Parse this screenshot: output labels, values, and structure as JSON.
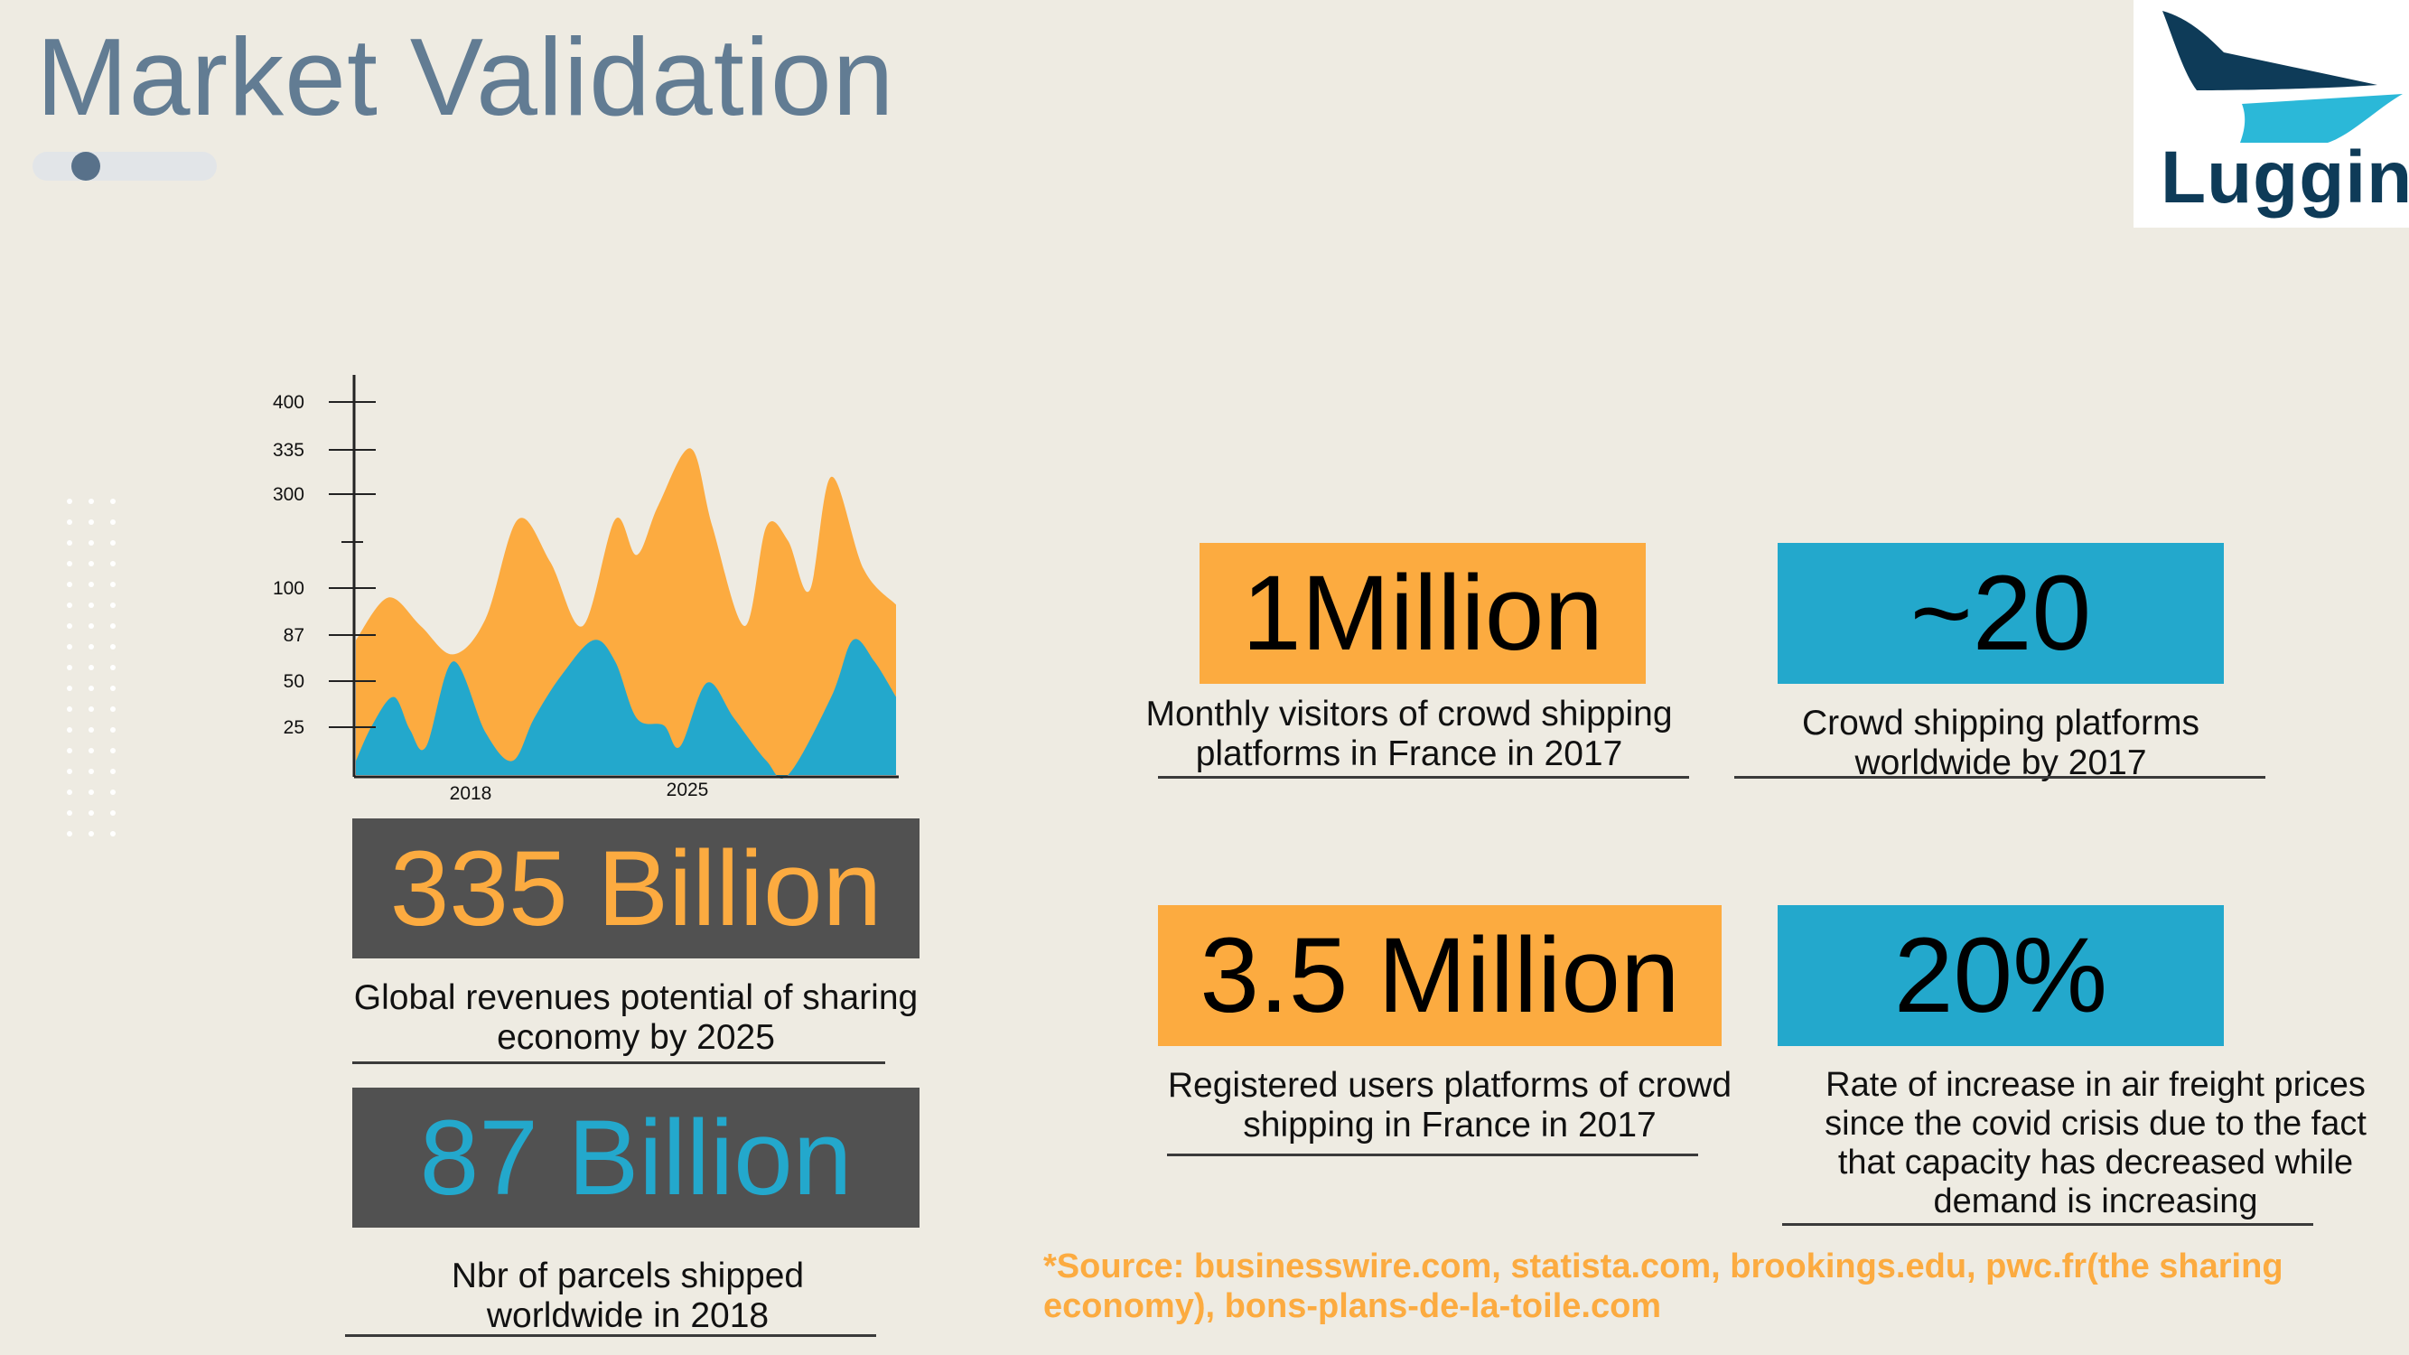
{
  "header": {
    "title": "Market Validation",
    "progress_position": 0.25
  },
  "logo": {
    "wordmark": "Luggin",
    "colors": {
      "dark": "#0e3b58",
      "light": "#2bb8d8"
    }
  },
  "chart_data": {
    "type": "area",
    "title": "",
    "xlabel": "",
    "ylabel": "",
    "y_tick_labels": [
      "400",
      "335",
      "300",
      "100",
      "87",
      "50",
      "25"
    ],
    "x_tick_labels": [
      "2018",
      "2025"
    ],
    "series": [
      {
        "color": "#fcab40",
        "x": [
          0,
          0.06,
          0.12,
          0.18,
          0.24,
          0.3,
          0.36,
          0.42,
          0.48,
          0.52,
          0.56,
          0.62,
          0.66,
          0.72,
          0.76,
          0.8,
          0.84,
          0.88,
          0.94,
          1.0
        ],
        "values": [
          95,
          125,
          105,
          85,
          110,
          180,
          150,
          105,
          180,
          155,
          190,
          230,
          175,
          105,
          175,
          165,
          130,
          210,
          145,
          120
        ]
      },
      {
        "color": "#23a8cc",
        "x": [
          0,
          0.03,
          0.07,
          0.1,
          0.13,
          0.18,
          0.24,
          0.29,
          0.33,
          0.38,
          0.44,
          0.48,
          0.52,
          0.57,
          0.6,
          0.65,
          0.7,
          0.76,
          0.8,
          0.88,
          0.92,
          0.96,
          1.0
        ],
        "values": [
          10,
          35,
          55,
          32,
          20,
          80,
          30,
          10,
          40,
          70,
          95,
          80,
          40,
          35,
          20,
          65,
          40,
          10,
          0,
          55,
          95,
          80,
          55
        ]
      }
    ]
  },
  "stats_left": [
    {
      "value": "335 Billion",
      "caption": "Global revenues potential of sharing economy by 2025",
      "color": "#fcab40"
    },
    {
      "value": "87 Billion",
      "caption": "Nbr of parcels shipped worldwide in 2018",
      "color": "#23a8cc"
    }
  ],
  "stats_right": {
    "million_visitors": {
      "value": "1Million",
      "caption": "Monthly visitors of crowd shipping platforms in France in 2017"
    },
    "platforms": {
      "value": "~20",
      "caption": "Crowd shipping platforms worldwide by 2017"
    },
    "registered_users": {
      "value": "3.5 Million",
      "caption": "Registered users platforms of crowd shipping in France in 2017"
    },
    "freight_increase": {
      "value": "20%",
      "caption": "Rate of increase in air freight prices since the covid crisis due to the fact that capacity has decreased while demand is increasing"
    }
  },
  "source": "*Source: businesswire.com, statista.com, brookings.edu, pwc.fr(the sharing economy), bons-plans-de-la-toile.com"
}
